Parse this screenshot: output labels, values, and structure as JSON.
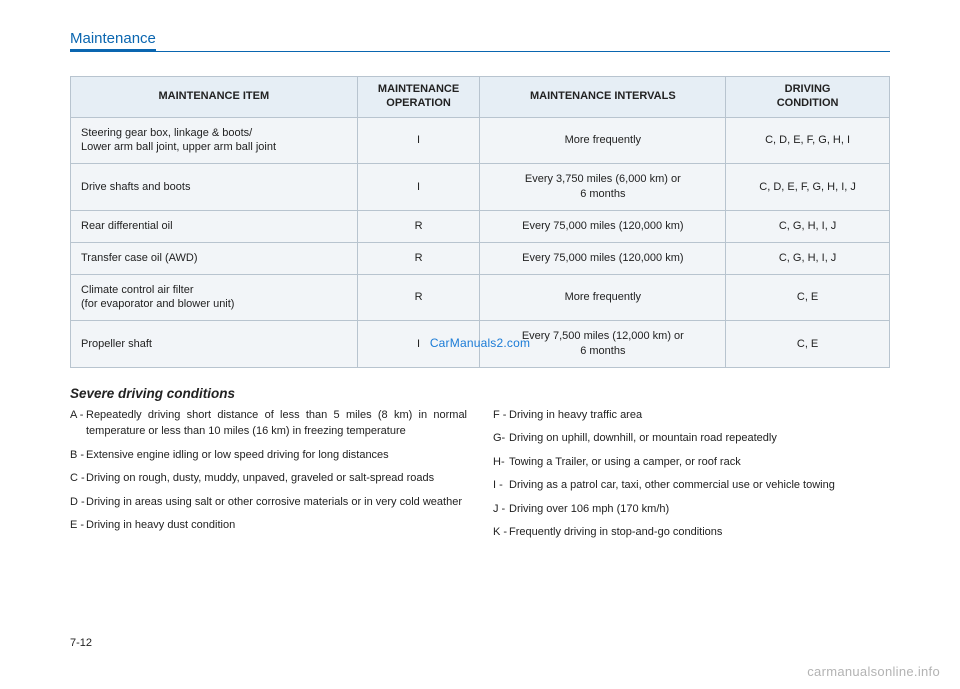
{
  "section_title": "Maintenance",
  "watermark_center": "CarManuals2.com",
  "table": {
    "headers": {
      "item": "MAINTENANCE ITEM",
      "operation": "MAINTENANCE\nOPERATION",
      "intervals": "MAINTENANCE INTERVALS",
      "condition": "DRIVING\nCONDITION"
    },
    "rows": [
      {
        "item": "Steering gear box, linkage & boots/\nLower arm ball joint, upper arm ball joint",
        "operation": "I",
        "intervals": "More frequently",
        "condition": "C, D, E, F, G, H, I"
      },
      {
        "item": "Drive shafts and boots",
        "operation": "I",
        "intervals": "Every 3,750 miles (6,000 km) or\n6 months",
        "condition": "C, D, E, F, G, H, I, J"
      },
      {
        "item": "Rear differential oil",
        "operation": "R",
        "intervals": "Every 75,000 miles (120,000 km)",
        "condition": "C, G, H, I, J"
      },
      {
        "item": "Transfer case oil (AWD)",
        "operation": "R",
        "intervals": "Every 75,000 miles (120,000 km)",
        "condition": "C, G, H, I, J"
      },
      {
        "item": "Climate control air filter\n(for evaporator and blower unit)",
        "operation": "R",
        "intervals": "More frequently",
        "condition": "C, E"
      },
      {
        "item": "Propeller shaft",
        "operation": "I",
        "intervals": "Every 7,500 miles (12,000 km) or\n6 months",
        "condition": "C, E"
      }
    ]
  },
  "subheading": "Severe driving conditions",
  "conditions_left": [
    {
      "k": "A -",
      "t": "Repeatedly driving short distance of less than 5 miles (8 km) in normal temperature or less than 10 miles (16 km) in freezing temperature"
    },
    {
      "k": "B -",
      "t": "Extensive engine idling or low speed driving for long distances"
    },
    {
      "k": "C -",
      "t": "Driving on rough, dusty, muddy, unpaved, graveled or salt-spread roads"
    },
    {
      "k": "D -",
      "t": "Driving in areas using salt or other corrosive materials or in very cold weather"
    },
    {
      "k": "E -",
      "t": "Driving in heavy dust condition"
    }
  ],
  "conditions_right": [
    {
      "k": "F -",
      "t": "Driving in heavy traffic area"
    },
    {
      "k": "G-",
      "t": "Driving on uphill, downhill, or mountain road repeatedly"
    },
    {
      "k": "H-",
      "t": "Towing a Trailer, or using a camper, or roof rack"
    },
    {
      "k": "I  -",
      "t": "Driving as a patrol car, taxi, other commercial use or vehicle towing"
    },
    {
      "k": "J -",
      "t": "Driving over 106 mph (170 km/h)"
    },
    {
      "k": "K -",
      "t": "Frequently driving in stop-and-go conditions"
    }
  ],
  "page_number": "7-12",
  "footer_watermark": "carmanualsonline.info",
  "style": {
    "accent_color": "#0a66b0",
    "table_header_bg": "#e6eef5",
    "table_cell_bg": "#f2f5f8",
    "table_border": "#b8c4cf",
    "body_font_size": 11,
    "watermark_color": "#1a7bd6",
    "footer_color": "#b3b3b3"
  }
}
